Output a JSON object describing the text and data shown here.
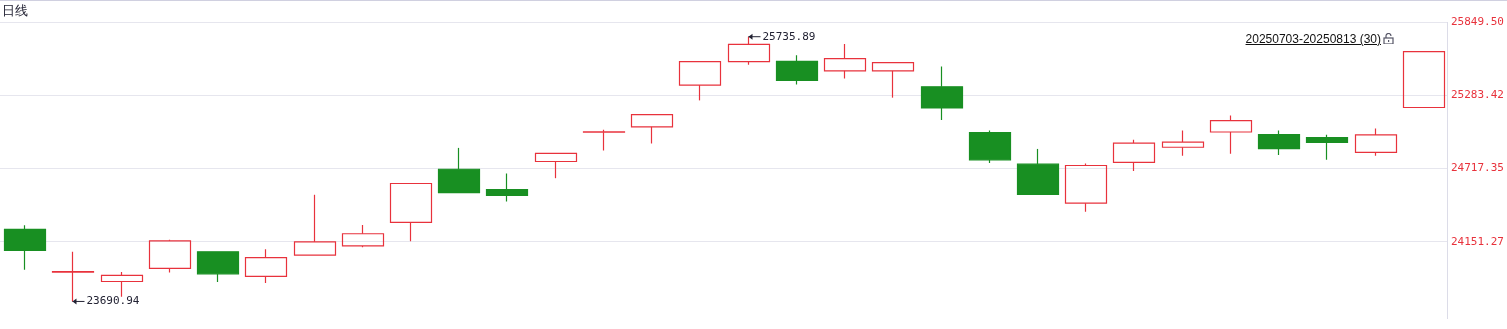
{
  "chart_data": {
    "type": "candlestick",
    "title": "日线",
    "categories": [
      null,
      null,
      null,
      null,
      null,
      null,
      null,
      null,
      null,
      null,
      null,
      null,
      null,
      null,
      null,
      null,
      null,
      null,
      null,
      null,
      null,
      null,
      null,
      null,
      null,
      null,
      null,
      null,
      null,
      null
    ],
    "ohlc": [
      [
        24248,
        24279,
        23936,
        24085
      ],
      [
        23918,
        24075,
        23690.94,
        23922
      ],
      [
        23845,
        23918,
        23727,
        23892
      ],
      [
        23947,
        24167,
        23915,
        24159
      ],
      [
        24074,
        24074,
        23841,
        23904
      ],
      [
        23884,
        24094,
        23834,
        24029
      ],
      [
        24049,
        24515,
        24049,
        24151
      ],
      [
        24120,
        24282,
        24109,
        24214
      ],
      [
        24301,
        24602,
        24156,
        24602
      ],
      [
        24712,
        24877,
        24531,
        24531
      ],
      [
        24555,
        24680,
        24463,
        24510
      ],
      [
        24772,
        24835,
        24643,
        24835
      ],
      [
        24998,
        25018,
        24856,
        25001
      ],
      [
        25040,
        25134,
        24911,
        25134
      ],
      [
        25362,
        25543,
        25244,
        25543
      ],
      [
        25543,
        25735.89,
        25519,
        25676
      ],
      [
        25545,
        25592,
        25367,
        25398
      ],
      [
        25472,
        25679,
        25414,
        25566
      ],
      [
        25472,
        25535,
        25265,
        25535
      ],
      [
        25349,
        25506,
        25092,
        25186
      ],
      [
        24995,
        25011,
        24761,
        24785
      ],
      [
        24751,
        24869,
        24518,
        24518
      ],
      [
        24450,
        24757,
        24384,
        24741
      ],
      [
        24765,
        24940,
        24699,
        24914
      ],
      [
        24882,
        25011,
        24816,
        24922
      ],
      [
        25000,
        25128,
        24832,
        25087
      ],
      [
        24979,
        25011,
        24822,
        24871
      ],
      [
        24956,
        24979,
        24785,
        24919
      ],
      [
        24843,
        25026,
        24816,
        24977
      ],
      [
        25189,
        25621,
        25189,
        25621
      ]
    ],
    "colors": [
      "#188f22",
      "#e8323c",
      "#e8323c",
      "#e8323c",
      "#188f22",
      "#e8323c",
      "#e8323c",
      "#e8323c",
      "#e8323c",
      "#188f22",
      "#188f22",
      "#e8323c",
      "#e8323c",
      "#e8323c",
      "#e8323c",
      "#e8323c",
      "#188f22",
      "#e8323c",
      "#e8323c",
      "#188f22",
      "#188f22",
      "#188f22",
      "#e8323c",
      "#e8323c",
      "#e8323c",
      "#e8323c",
      "#188f22",
      "#188f22",
      "#e8323c",
      "#e8323c"
    ],
    "ylim": [
      23560,
      25849.5
    ],
    "yticks": [
      {
        "value": 24151.27,
        "label": "24151.27"
      },
      {
        "value": 24717.35,
        "label": "24717.35"
      },
      {
        "value": 25283.42,
        "label": "25283.42"
      },
      {
        "value": 25849.5,
        "label": "25849.50"
      }
    ],
    "grid": "y",
    "tick_labels": "y",
    "annotations": [
      "20250703-20250813 (30)",
      "25735.89",
      "23690.94"
    ]
  }
}
